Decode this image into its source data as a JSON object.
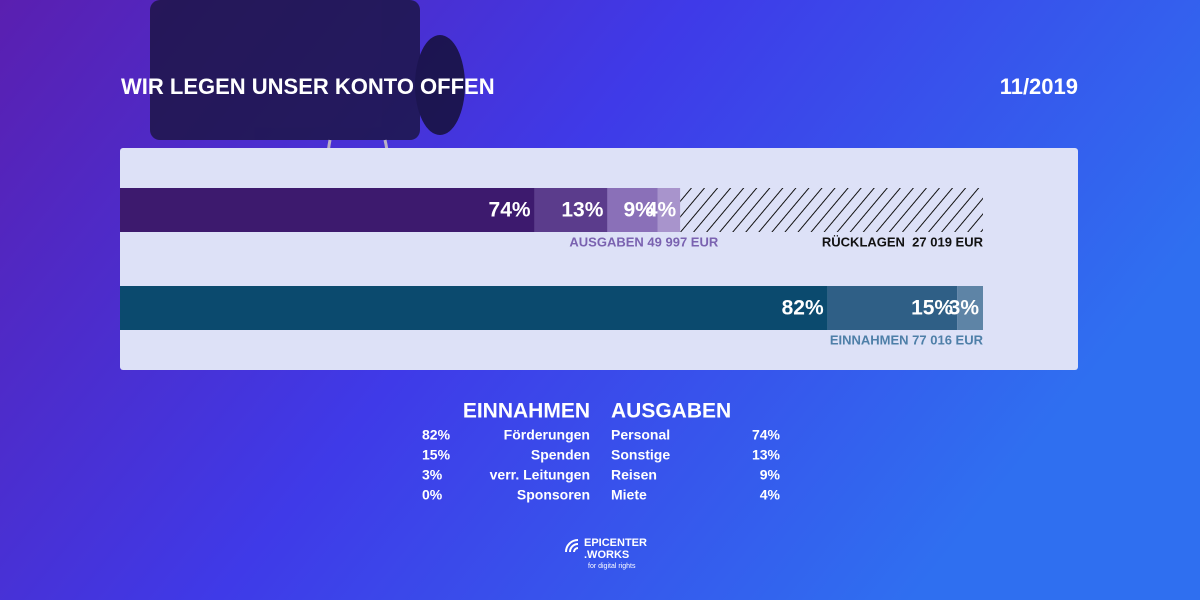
{
  "chart_data": {
    "type": "bar",
    "title": "WIR LEGEN UNSER KONTO OFFEN",
    "date": "11/2019",
    "xlim": [
      0,
      77016
    ],
    "bars": [
      {
        "label": "AUSGABEN 49 997 EUR",
        "total": 49997,
        "label_color": "#7a62b0",
        "values": [
          74,
          13,
          9,
          4
        ],
        "value_labels": [
          "74%",
          "13%",
          "9%",
          "4%"
        ],
        "colors": [
          "#3d1a6e",
          "#5b3c8c",
          "#8a70b8",
          "#a894cc"
        ]
      },
      {
        "label": "EINNAHMEN 77 016 EUR",
        "total": 77016,
        "label_color": "#4e7fa8",
        "values": [
          82,
          15,
          3
        ],
        "value_labels": [
          "82%",
          "15%",
          "3%"
        ],
        "colors": [
          "#0b4a6e",
          "#2f5f86",
          "#5e84a6"
        ]
      }
    ],
    "reserve": {
      "label": "RÜCKLAGEN  27 019 EUR",
      "total": 27019
    },
    "legend": {
      "income": {
        "title": "EINNAHMEN",
        "names": [
          "Förderungen",
          "Spenden",
          "verr. Leitungen",
          "Sponsoren"
        ],
        "labels": [
          "82%",
          "15%",
          "3%",
          "0%"
        ]
      },
      "expenses": {
        "title": "AUSGABEN",
        "names": [
          "Personal",
          "Sonstige",
          "Reisen",
          "Miete"
        ],
        "labels": [
          "74%",
          "13%",
          "9%",
          "4%"
        ]
      }
    },
    "logo": {
      "name": "EPICENTER",
      "name2": ".WORKS",
      "tagline": "for digital rights"
    }
  }
}
